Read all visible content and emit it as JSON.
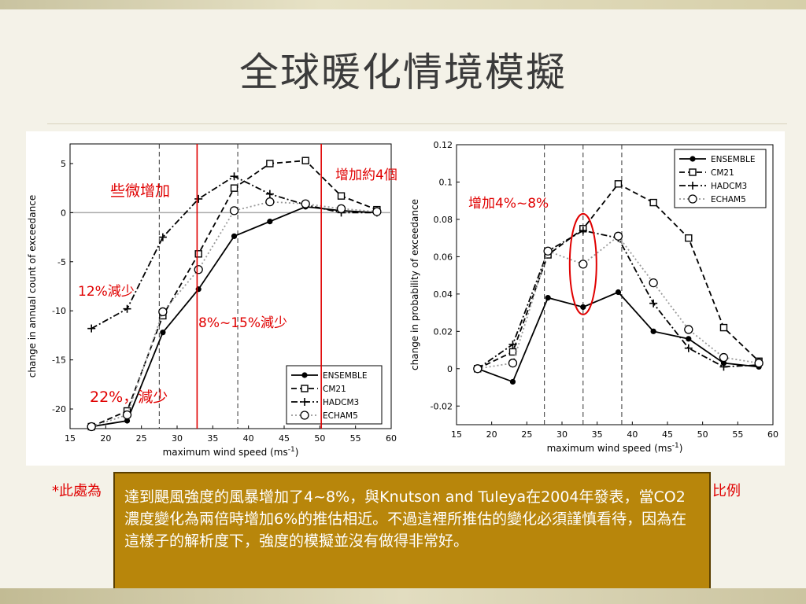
{
  "title": "全球暖化情境模擬",
  "chart_data": [
    {
      "type": "line",
      "xlabel": "maximum wind speed (ms",
      "xlabel_sup": "-1",
      "xlabel_close": ")",
      "ylabel": "change in annual count of exceedance",
      "xlim": [
        15,
        60
      ],
      "ylim": [
        -22,
        7
      ],
      "xticks": [
        15,
        20,
        25,
        30,
        35,
        40,
        45,
        50,
        55,
        60
      ],
      "yticks": [
        5,
        0,
        -5,
        -10,
        -15,
        -20
      ],
      "x": [
        18,
        23,
        28,
        33,
        38,
        43,
        48,
        53,
        58
      ],
      "dashed_vlines": [
        27.5,
        38.5
      ],
      "legend_position": "bottom-right",
      "series": [
        {
          "name": "ENSEMBLE",
          "style": "solid",
          "marker": "star",
          "values": [
            -21.8,
            -21.2,
            -12.2,
            -7.8,
            -2.4,
            -0.9,
            0.6,
            0.2,
            0.0
          ]
        },
        {
          "name": "CM21",
          "style": "dashed",
          "marker": "square",
          "values": [
            -21.8,
            -20.2,
            -10.5,
            -4.2,
            2.5,
            5.0,
            5.3,
            1.7,
            0.3
          ]
        },
        {
          "name": "HADCM3",
          "style": "dashdot",
          "marker": "plus",
          "values": [
            -11.8,
            -9.8,
            -2.5,
            1.4,
            3.7,
            1.9,
            0.8,
            0.0,
            0.0
          ]
        },
        {
          "name": "ECHAM5",
          "style": "dotted",
          "marker": "circle",
          "values": [
            -21.8,
            -20.6,
            -10.1,
            -5.8,
            0.2,
            1.1,
            0.9,
            0.4,
            0.1
          ]
        }
      ]
    },
    {
      "type": "line",
      "xlabel": "maximum wind speed (ms",
      "xlabel_sup": "-1",
      "xlabel_close": ")",
      "ylabel": "change in probability of exceedance",
      "xlim": [
        15,
        60
      ],
      "ylim": [
        -0.03,
        0.12
      ],
      "xticks": [
        15,
        20,
        25,
        30,
        35,
        40,
        45,
        50,
        55,
        60
      ],
      "yticks": [
        "0.12",
        "0.1",
        "0.08",
        "0.06",
        "0.04",
        "0.02",
        "0",
        "-0.02"
      ],
      "x": [
        18,
        23,
        28,
        33,
        38,
        43,
        48,
        53,
        58
      ],
      "dashed_vlines": [
        27.5,
        33,
        38.5
      ],
      "legend_position": "top-right",
      "series": [
        {
          "name": "ENSEMBLE",
          "style": "solid",
          "marker": "star",
          "values": [
            0.0,
            -0.007,
            0.038,
            0.033,
            0.041,
            0.02,
            0.016,
            0.003,
            0.001
          ]
        },
        {
          "name": "CM21",
          "style": "dashed",
          "marker": "square",
          "values": [
            0.0,
            0.009,
            0.061,
            0.075,
            0.099,
            0.089,
            0.07,
            0.022,
            0.004
          ]
        },
        {
          "name": "HADCM3",
          "style": "dashdot",
          "marker": "plus",
          "values": [
            0.0,
            0.013,
            0.063,
            0.074,
            0.07,
            0.035,
            0.011,
            0.001,
            0.002
          ]
        },
        {
          "name": "ECHAM5",
          "style": "dotted",
          "marker": "circle",
          "values": [
            0.0,
            0.003,
            0.063,
            0.056,
            0.071,
            0.046,
            0.021,
            0.006,
            0.003
          ]
        }
      ]
    }
  ],
  "annotations": {
    "left_slight_increase": "些微增加",
    "left_increase_4": "增加約4個",
    "left_decrease_12": "12%減少",
    "left_decrease_8_15": "8%~15%減少",
    "left_decrease_22": "22%，減少",
    "right_increase": "增加4%~8%"
  },
  "footnote_left": "*此處為",
  "footnote_right": "比例",
  "note_text": "達到颶風強度的風暴增加了4~8%，與Knutson and Tuleya在2004年發表，當CO2濃度變化為兩倍時增加6%的推估相近。不過這裡所推估的變化必須謹慎看待，因為在這樣子的解析度下，強度的模擬並沒有做得非常好。",
  "colors": {
    "annotation_red": "#e00000",
    "note_background": "#b8860b",
    "note_border": "#5a3f00",
    "title_color": "#3b3b3b"
  }
}
